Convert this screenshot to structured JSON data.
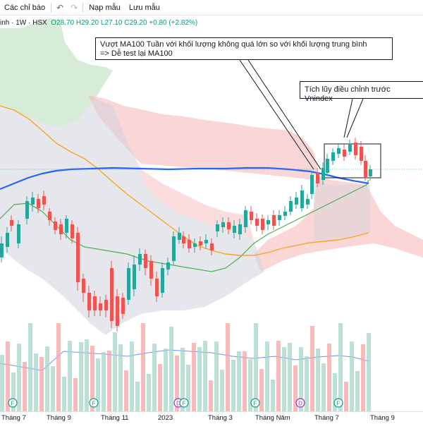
{
  "toolbar": {
    "indicators_label": "Các chỉ báo",
    "undo_icon": "undo-icon",
    "redo_icon": "redo-icon",
    "template_label": "Nạp mẫu",
    "save_label": "Lưu mẫu"
  },
  "legend": {
    "symbol_tail": "inh",
    "interval": "1W",
    "exchange": "HSX",
    "open": "O28.70",
    "high": "H29.20",
    "low": "L27.10",
    "close": "C29.20",
    "change": "+0.80 (+2.82%)"
  },
  "annotations": [
    {
      "line1": "Vượt MA100 Tuần với khối lượng không quá lớn so với khối lượng trung bình",
      "line2": "=> Dễ test lại MA100"
    },
    {
      "line1": "Tích lũy điều chỉnh trước Vnindex",
      "line2": ""
    }
  ],
  "event_markers": [
    {
      "letter": "F",
      "color": "#089981"
    },
    {
      "letter": "F",
      "color": "#089981"
    },
    {
      "letter": "D",
      "color": "#9c27b0"
    },
    {
      "letter": "F",
      "color": "#089981"
    },
    {
      "letter": "F",
      "color": "#089981"
    },
    {
      "letter": "D",
      "color": "#9c27b0"
    },
    {
      "letter": "F",
      "color": "#089981"
    }
  ],
  "x_axis_labels": [
    "Tháng 7",
    "Tháng 9",
    "Tháng 11",
    "2023",
    "Tháng 3",
    "Tháng Năm",
    "Tháng 7",
    "Tháng 9"
  ],
  "colors": {
    "up": "#26a69a",
    "down": "#ef5350",
    "ma100": "#2962ff",
    "ma_orange": "#f5a623",
    "ma_green": "#4caf50"
  }
}
